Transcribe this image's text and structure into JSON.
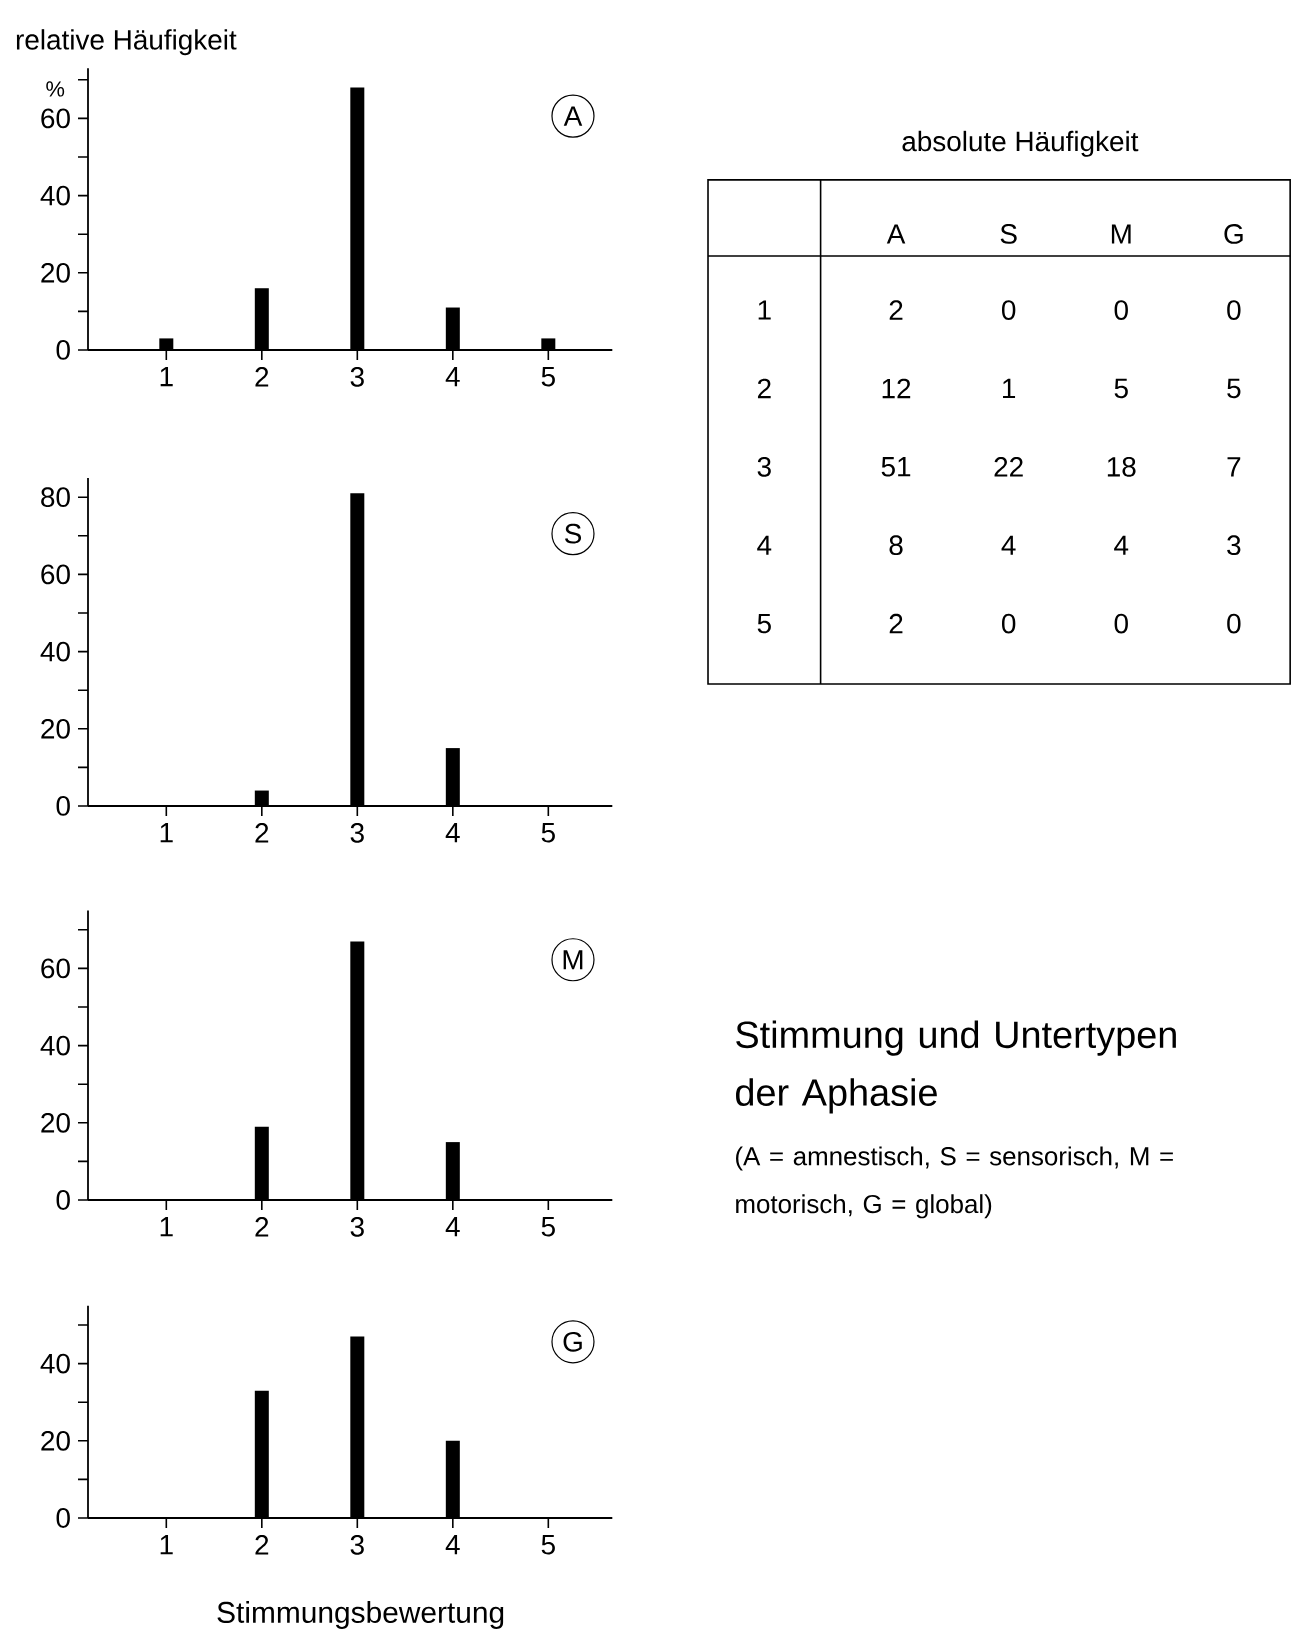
{
  "chart_data": [
    {
      "type": "bar",
      "title": "A",
      "ylabel": "relative Häufigkeit",
      "annotations": [
        "%"
      ],
      "categories": [
        "1",
        "2",
        "3",
        "4",
        "5"
      ],
      "values": [
        3,
        16,
        68,
        11,
        3
      ],
      "color": "#000000",
      "ylim": [
        0,
        73
      ],
      "yticks": [
        0,
        {
          "value": 10,
          "label": null
        },
        20,
        {
          "value": 30,
          "label": null
        },
        40,
        {
          "value": 50,
          "label": null
        },
        60,
        {
          "value": 70,
          "label": null
        }
      ]
    },
    {
      "type": "bar",
      "title": "S",
      "categories": [
        "1",
        "2",
        "3",
        "4",
        "5"
      ],
      "values": [
        0,
        4,
        81,
        15,
        0
      ],
      "color": "#000000",
      "ylim": [
        0,
        85
      ],
      "yticks": [
        0,
        {
          "value": 10,
          "label": null
        },
        20,
        {
          "value": 30,
          "label": null
        },
        40,
        {
          "value": 50,
          "label": null
        },
        60,
        {
          "value": 70,
          "label": null
        },
        80
      ]
    },
    {
      "type": "bar",
      "title": "M",
      "categories": [
        "1",
        "2",
        "3",
        "4",
        "5"
      ],
      "values": [
        0,
        19,
        67,
        15,
        0
      ],
      "color": "#000000",
      "ylim": [
        0,
        75
      ],
      "yticks": [
        0,
        {
          "value": 10,
          "label": null
        },
        20,
        {
          "value": 30,
          "label": null
        },
        40,
        {
          "value": 50,
          "label": null
        },
        60,
        {
          "value": 70,
          "label": null
        }
      ]
    },
    {
      "type": "bar",
      "title": "G",
      "xlabel": "Stimmungsbewertung",
      "categories": [
        "1",
        "2",
        "3",
        "4",
        "5"
      ],
      "values": [
        0,
        33,
        47,
        20,
        0
      ],
      "color": "#000000",
      "ylim": [
        0,
        55
      ],
      "yticks": [
        0,
        {
          "value": 10,
          "label": null
        },
        20,
        {
          "value": 30,
          "label": null
        },
        40,
        {
          "value": 50,
          "label": null
        }
      ]
    },
    {
      "type": "heatmap",
      "title": "absolute Häufigkeit",
      "categories": [
        "A",
        "S",
        "M",
        "G"
      ],
      "y_categories": [
        "1",
        "2",
        "3",
        "4",
        "5"
      ],
      "cells": [
        [
          2,
          0,
          0,
          0
        ],
        [
          12,
          1,
          5,
          5
        ],
        [
          51,
          22,
          18,
          7
        ],
        [
          8,
          4,
          4,
          3
        ],
        [
          2,
          0,
          0,
          0
        ]
      ],
      "cell_labels": [
        [
          "2",
          "0",
          "0",
          "0"
        ],
        [
          "12",
          "1",
          "5",
          "5"
        ],
        [
          "51",
          "22",
          "18",
          "7"
        ],
        [
          "8",
          "4",
          "4",
          "3"
        ],
        [
          "2",
          "0",
          "0",
          "0"
        ]
      ]
    },
    {
      "type": "other",
      "title": "Stimmung und Untertypen der Aphasie",
      "annotations": [
        "(A = amnestisch, S = sensorisch, M = motorisch, G = global)"
      ]
    }
  ]
}
